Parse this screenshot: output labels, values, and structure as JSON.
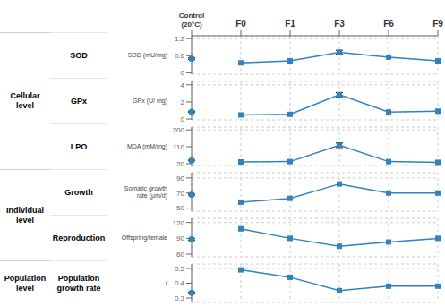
{
  "chart_data": [
    {
      "type": "line",
      "title": "SOD",
      "subtitle": "Cellular\nlevel",
      "ylabel": "SOD (mU/mg)",
      "categories": [
        "Control\n(20°C)",
        "F0",
        "F1",
        "F3",
        "F6",
        "F9"
      ],
      "series": [
        {
          "type": "scatter",
          "marker": "circle",
          "values": [
            0.5,
            null,
            null,
            null,
            null,
            null
          ],
          "errors": [
            0.03,
            null,
            null,
            null,
            null,
            null
          ]
        },
        {
          "type": "line",
          "marker": "square",
          "values": [
            null,
            0.35,
            0.42,
            0.72,
            0.55,
            0.42
          ],
          "errors": [
            null,
            null,
            null,
            0.07,
            null,
            null
          ]
        }
      ],
      "ylim": [
        -0.05,
        1.3
      ],
      "yticks": [
        0,
        0.6,
        1.2
      ],
      "grid": true
    },
    {
      "type": "line",
      "title": "GPx",
      "ylabel": "GPx (U/ mg)",
      "categories": [
        "Control\n(20°C)",
        "F0",
        "F1",
        "F3",
        "F6",
        "F9"
      ],
      "series": [
        {
          "type": "scatter",
          "marker": "circle",
          "values": [
            0.85,
            null,
            null,
            null,
            null,
            null
          ],
          "errors": [
            0.05,
            null,
            null,
            null,
            null,
            null
          ]
        },
        {
          "type": "line",
          "marker": "square",
          "values": [
            null,
            0.48,
            0.55,
            2.85,
            0.82,
            0.92
          ],
          "errors": [
            null,
            null,
            null,
            0.25,
            null,
            null
          ]
        }
      ],
      "ylim": [
        -0.1,
        4.4
      ],
      "yticks": [
        0,
        2,
        4
      ],
      "grid": true,
      "tick_labels": "y"
    },
    {
      "type": "line",
      "title": "LPO",
      "ylabel": "MDA (mM/mg)",
      "categories": [
        "Control\n(20°C)",
        "F0",
        "F1",
        "F3",
        "F6",
        "F9"
      ],
      "series": [
        {
          "type": "scatter",
          "marker": "circle",
          "values": [
            37,
            null,
            null,
            null,
            null,
            null
          ],
          "errors": [
            2,
            null,
            null,
            null,
            null,
            null
          ]
        },
        {
          "type": "line",
          "marker": "square",
          "values": [
            null,
            29,
            31,
            118,
            31,
            27
          ],
          "errors": [
            null,
            null,
            null,
            12,
            null,
            null
          ]
        }
      ],
      "ylim": [
        10,
        215
      ],
      "yticks": [
        20,
        110,
        200
      ],
      "grid": true,
      "tick_labels": "y"
    },
    {
      "type": "line",
      "title": "Growth",
      "subtitle": "Individual\nlevel",
      "ylabel": "Somatic growth\nrate (μm/d)",
      "categories": [
        "Control\n(20°C)",
        "F0",
        "F1",
        "F3",
        "F6",
        "F9"
      ],
      "series": [
        {
          "type": "scatter",
          "marker": "circle",
          "values": [
            68,
            null,
            null,
            null,
            null,
            null
          ],
          "errors": [
            1,
            null,
            null,
            null,
            null,
            null
          ]
        },
        {
          "type": "line",
          "marker": "square",
          "values": [
            null,
            58,
            63,
            82,
            70,
            70
          ]
        }
      ],
      "ylim": [
        46,
        97
      ],
      "yticks": [
        50,
        70,
        90
      ],
      "grid": true,
      "tick_labels": "y"
    },
    {
      "type": "line",
      "title": "Reproduction",
      "ylabel": "Offspring/female",
      "categories": [
        "Control\n(20°C)",
        "F0",
        "F1",
        "F3",
        "F6",
        "F9"
      ],
      "series": [
        {
          "type": "scatter",
          "marker": "circle",
          "values": [
            88,
            null,
            null,
            null,
            null,
            null
          ],
          "errors": [
            2,
            null,
            null,
            null,
            null,
            null
          ]
        },
        {
          "type": "line",
          "marker": "square",
          "values": [
            null,
            108,
            90,
            75,
            83,
            90
          ]
        }
      ],
      "ylim": [
        55,
        128
      ],
      "yticks": [
        60,
        90,
        120
      ],
      "grid": true,
      "tick_labels": "y"
    },
    {
      "type": "line",
      "title": "Population\ngrowth rate",
      "subtitle": "Population\nlevel",
      "ylabel": "r",
      "categories": [
        "Control\n(20°C)",
        "F0",
        "F1",
        "F3",
        "F6",
        "F9"
      ],
      "series": [
        {
          "type": "scatter",
          "marker": "circle",
          "values": [
            0.335,
            null,
            null,
            null,
            null,
            null
          ],
          "errors": [
            0.005,
            null,
            null,
            null,
            null,
            null
          ]
        },
        {
          "type": "line",
          "marker": "square",
          "values": [
            null,
            0.49,
            0.44,
            0.35,
            0.38,
            0.38
          ]
        }
      ],
      "ylim": [
        0.27,
        0.53
      ],
      "yticks": [
        0.3,
        0.4,
        0.5
      ],
      "grid": true,
      "tick_labels": "y"
    }
  ]
}
